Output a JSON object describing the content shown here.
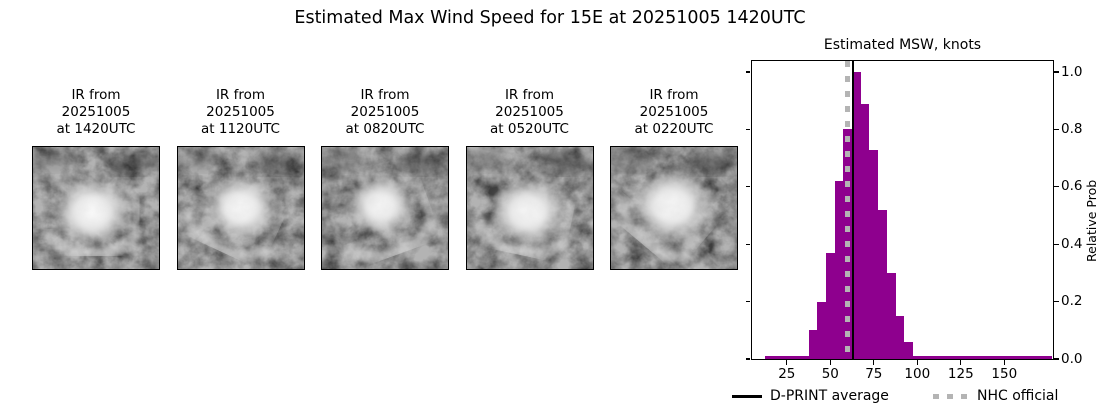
{
  "title": "Estimated Max Wind Speed for 15E at 20251005 1420UTC",
  "panels": [
    {
      "caption_lines": [
        "IR from",
        "20251005",
        "at 1420UTC"
      ]
    },
    {
      "caption_lines": [
        "IR from",
        "20251005",
        "at 1120UTC"
      ]
    },
    {
      "caption_lines": [
        "IR from",
        "20251005",
        "at 0820UTC"
      ]
    },
    {
      "caption_lines": [
        "IR from",
        "20251005",
        "at 0520UTC"
      ]
    },
    {
      "caption_lines": [
        "IR from",
        "20251005",
        "at 0220UTC"
      ]
    }
  ],
  "chart": {
    "title": "Estimated MSW, knots",
    "ylabel": "Relative Prob",
    "legend": {
      "dprint_label": "D-PRINT average",
      "nhc_label": "NHC official"
    }
  },
  "chart_data": {
    "type": "bar",
    "subtype": "histogram",
    "title": "Estimated MSW, knots",
    "ylabel": "Relative Prob",
    "bin_width": 5,
    "bin_centers": [
      15,
      20,
      25,
      30,
      35,
      40,
      45,
      50,
      55,
      60,
      65,
      70,
      75,
      80,
      85,
      90,
      95,
      100,
      105,
      110,
      115,
      120,
      125,
      130,
      135,
      140,
      145,
      150,
      155,
      160,
      165,
      170,
      175
    ],
    "values": [
      0.01,
      0.01,
      0.01,
      0.01,
      0.01,
      0.1,
      0.2,
      0.37,
      0.62,
      0.8,
      1.0,
      0.89,
      0.73,
      0.52,
      0.3,
      0.15,
      0.06,
      0.01,
      0.01,
      0.01,
      0.01,
      0.01,
      0.01,
      0.01,
      0.01,
      0.01,
      0.01,
      0.01,
      0.01,
      0.01,
      0.01,
      0.01,
      0.01
    ],
    "xlim": [
      5,
      178
    ],
    "ylim": [
      0,
      1.04
    ],
    "xticks": [
      25,
      50,
      75,
      100,
      125,
      150
    ],
    "xtick_labels": [
      "25",
      "50",
      "75",
      "100",
      "125",
      "150"
    ],
    "yticks": [
      0.0,
      0.2,
      0.4,
      0.6,
      0.8,
      1.0
    ],
    "ytick_labels": [
      "0.0",
      "0.2",
      "0.4",
      "0.6",
      "0.8",
      "1.0"
    ],
    "dprint_average": 63,
    "nhc_official": 60,
    "bar_color": "#8e008e",
    "dprint_line_color": "#000000",
    "nhc_line_color": "#b4b4b4",
    "legend_position": "bottom",
    "grid": false
  }
}
